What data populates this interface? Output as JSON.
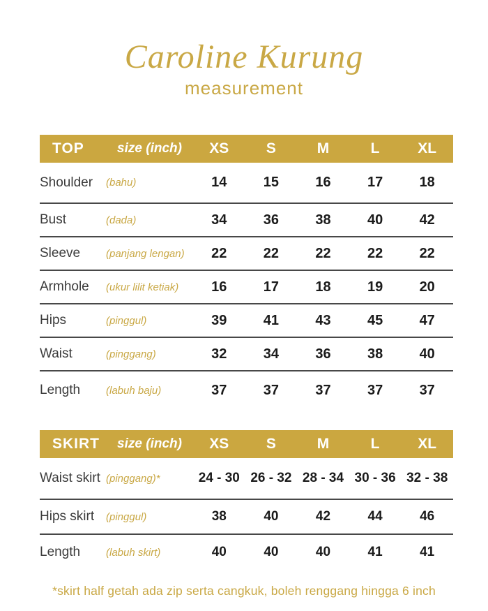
{
  "title": "Caroline Kurung",
  "subtitle": "measurement",
  "colors": {
    "gold": "#c9a845",
    "bar_background": "#cba740",
    "bar_text": "#ffffff",
    "row_label": "#3b3b3b",
    "value_text": "#1b1b1b",
    "divider": "#484848"
  },
  "tables": [
    {
      "name": "TOP",
      "size_label": "size (inch)",
      "sizes": [
        "XS",
        "S",
        "M",
        "L",
        "XL"
      ],
      "rows": [
        {
          "label": "Shoulder",
          "sublabel": "(bahu)",
          "values": [
            "14",
            "15",
            "16",
            "17",
            "18"
          ]
        },
        {
          "label": "Bust",
          "sublabel": "(dada)",
          "values": [
            "34",
            "36",
            "38",
            "40",
            "42"
          ]
        },
        {
          "label": "Sleeve",
          "sublabel": "(panjang lengan)",
          "values": [
            "22",
            "22",
            "22",
            "22",
            "22"
          ]
        },
        {
          "label": "Armhole",
          "sublabel": "(ukur lilit ketiak)",
          "values": [
            "16",
            "17",
            "18",
            "19",
            "20"
          ]
        },
        {
          "label": "Hips",
          "sublabel": "(pinggul)",
          "values": [
            "39",
            "41",
            "43",
            "45",
            "47"
          ]
        },
        {
          "label": "Waist",
          "sublabel": "(pinggang)",
          "values": [
            "32",
            "34",
            "36",
            "38",
            "40"
          ]
        },
        {
          "label": "Length",
          "sublabel": "(labuh baju)",
          "values": [
            "37",
            "37",
            "37",
            "37",
            "37"
          ]
        }
      ]
    },
    {
      "name": "SKIRT",
      "size_label": "size (inch)",
      "sizes": [
        "XS",
        "S",
        "M",
        "L",
        "XL"
      ],
      "rows": [
        {
          "label": "Waist skirt",
          "sublabel": "(pinggang)*",
          "values": [
            "24 - 30",
            "26 - 32",
            "28 - 34",
            "30 - 36",
            "32 - 38"
          ]
        },
        {
          "label": "Hips skirt",
          "sublabel": "(pinggul)",
          "values": [
            "38",
            "40",
            "42",
            "44",
            "46"
          ]
        },
        {
          "label": "Length",
          "sublabel": "(labuh skirt)",
          "values": [
            "40",
            "40",
            "40",
            "41",
            "41"
          ]
        }
      ]
    }
  ],
  "footnote": "*skirt half getah ada zip serta cangkuk, boleh renggang hingga 6 inch"
}
